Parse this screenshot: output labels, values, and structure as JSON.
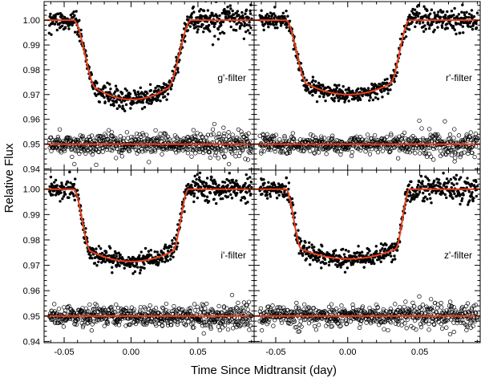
{
  "chart_data": {
    "type": "scatter",
    "layout": "2x2 panel grid with shared axes",
    "xlabel": "Time Since Midtransit (day)",
    "ylabel": "Relative Flux",
    "xlim": [
      -0.065,
      0.092
    ],
    "ylim": [
      0.9395,
      1.0075
    ],
    "x_ticks": [
      -0.05,
      0.0,
      0.05
    ],
    "x_tick_labels": [
      "-0.05",
      "0.00",
      "0.05"
    ],
    "y_ticks": [
      0.94,
      0.95,
      0.96,
      0.97,
      0.98,
      0.99,
      1.0
    ],
    "y_tick_labels": [
      "0.94",
      "0.95",
      "0.96",
      "0.97",
      "0.98",
      "0.99",
      "1.00"
    ],
    "series_styles": {
      "data": "filled black circles (transit photometry)",
      "residuals": "open black circles (residuals offset to 0.95)",
      "model": "solid red-orange line (best-fit transit model)"
    },
    "model_color": "#e8401c",
    "point_color": "#000000",
    "panels": [
      {
        "filter": "g'-filter",
        "label": "g'-filter",
        "baseline": 1.0,
        "min_flux": 0.968,
        "residual_offset": 0.95,
        "noise": 0.0019,
        "transit": {
          "t_first_contact": -0.043,
          "t_second_contact": -0.026,
          "t_third_contact": 0.027,
          "t_fourth_contact": 0.045
        }
      },
      {
        "filter": "r'-filter",
        "label": "r'-filter",
        "baseline": 1.0,
        "min_flux": 0.97,
        "residual_offset": 0.95,
        "noise": 0.0017,
        "transit": {
          "t_first_contact": -0.043,
          "t_second_contact": -0.028,
          "t_third_contact": 0.029,
          "t_fourth_contact": 0.043
        }
      },
      {
        "filter": "i'-filter",
        "label": "i'-filter",
        "baseline": 1.0,
        "min_flux": 0.9715,
        "residual_offset": 0.95,
        "noise": 0.0018,
        "transit": {
          "t_first_contact": -0.043,
          "t_second_contact": -0.03,
          "t_third_contact": 0.031,
          "t_fourth_contact": 0.043
        }
      },
      {
        "filter": "z'-filter",
        "label": "z'-filter",
        "baseline": 1.0,
        "min_flux": 0.9725,
        "residual_offset": 0.95,
        "noise": 0.0019,
        "transit": {
          "t_first_contact": -0.043,
          "t_second_contact": -0.032,
          "t_third_contact": 0.033,
          "t_fourth_contact": 0.043
        }
      }
    ]
  }
}
